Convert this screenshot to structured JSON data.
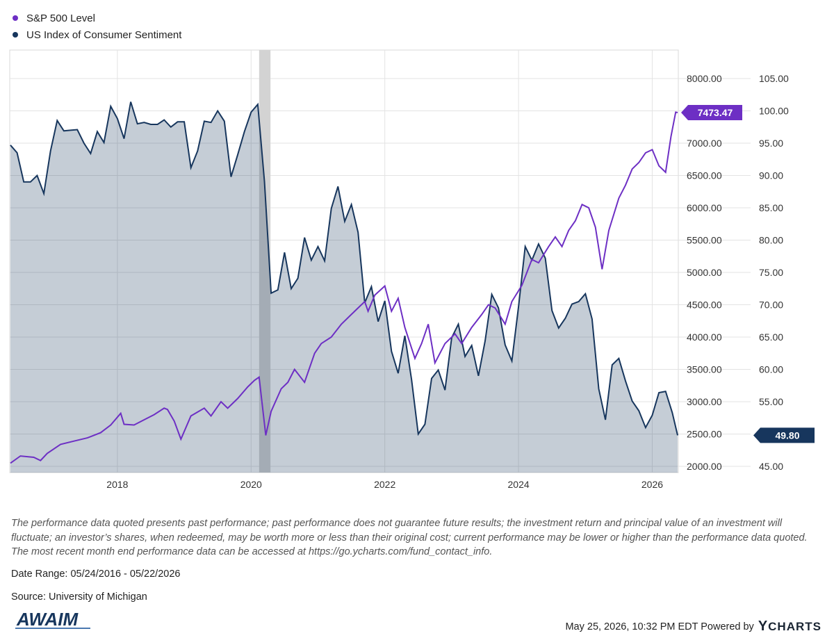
{
  "chart_data": {
    "type": "line",
    "x_range": [
      "2016-05-24",
      "2026-05-22"
    ],
    "x_ticks": [
      "2018",
      "2020",
      "2022",
      "2024",
      "2026"
    ],
    "y_left_ticks": [
      "8000.00",
      "7500.00",
      "7000.00",
      "6500.00",
      "6000.00",
      "5500.00",
      "5000.00",
      "4500.00",
      "4000.00",
      "3500.00",
      "3000.00",
      "2500.00",
      "2000.00"
    ],
    "y_right_ticks": [
      "105.00",
      "100.00",
      "95.00",
      "90.00",
      "85.00",
      "80.00",
      "75.00",
      "70.00",
      "65.00",
      "60.00",
      "55.00",
      "50.00",
      "45.00"
    ],
    "y_left_range": [
      2000,
      8000
    ],
    "y_right_range": [
      45,
      105
    ],
    "grid": "horizontal",
    "shaded_periods": [
      {
        "start": 2020.12,
        "end": 2020.29
      }
    ],
    "series": [
      {
        "name": "S&P 500 Level",
        "axis": "left",
        "color": "#6d2fc4",
        "last_value": "7473.47",
        "points": [
          [
            2016.4,
            2050
          ],
          [
            2016.55,
            2160
          ],
          [
            2016.75,
            2140
          ],
          [
            2016.85,
            2090
          ],
          [
            2016.95,
            2200
          ],
          [
            2017.15,
            2340
          ],
          [
            2017.35,
            2390
          ],
          [
            2017.55,
            2440
          ],
          [
            2017.75,
            2520
          ],
          [
            2017.9,
            2640
          ],
          [
            2018.05,
            2820
          ],
          [
            2018.1,
            2650
          ],
          [
            2018.25,
            2640
          ],
          [
            2018.4,
            2720
          ],
          [
            2018.55,
            2800
          ],
          [
            2018.7,
            2900
          ],
          [
            2018.75,
            2880
          ],
          [
            2018.85,
            2700
          ],
          [
            2018.95,
            2420
          ],
          [
            2019.1,
            2780
          ],
          [
            2019.3,
            2900
          ],
          [
            2019.4,
            2780
          ],
          [
            2019.55,
            3000
          ],
          [
            2019.65,
            2900
          ],
          [
            2019.8,
            3050
          ],
          [
            2019.95,
            3230
          ],
          [
            2020.05,
            3330
          ],
          [
            2020.12,
            3380
          ],
          [
            2020.22,
            2480
          ],
          [
            2020.3,
            2850
          ],
          [
            2020.45,
            3200
          ],
          [
            2020.55,
            3300
          ],
          [
            2020.65,
            3500
          ],
          [
            2020.8,
            3300
          ],
          [
            2020.95,
            3750
          ],
          [
            2021.05,
            3900
          ],
          [
            2021.2,
            4000
          ],
          [
            2021.35,
            4200
          ],
          [
            2021.5,
            4350
          ],
          [
            2021.6,
            4450
          ],
          [
            2021.7,
            4550
          ],
          [
            2021.75,
            4400
          ],
          [
            2021.85,
            4650
          ],
          [
            2022.0,
            4790
          ],
          [
            2022.1,
            4400
          ],
          [
            2022.2,
            4600
          ],
          [
            2022.3,
            4150
          ],
          [
            2022.45,
            3670
          ],
          [
            2022.55,
            3900
          ],
          [
            2022.65,
            4200
          ],
          [
            2022.75,
            3600
          ],
          [
            2022.9,
            3900
          ],
          [
            2023.05,
            4050
          ],
          [
            2023.15,
            3900
          ],
          [
            2023.3,
            4150
          ],
          [
            2023.45,
            4350
          ],
          [
            2023.55,
            4500
          ],
          [
            2023.65,
            4450
          ],
          [
            2023.8,
            4200
          ],
          [
            2023.9,
            4550
          ],
          [
            2024.05,
            4800
          ],
          [
            2024.2,
            5200
          ],
          [
            2024.3,
            5150
          ],
          [
            2024.45,
            5400
          ],
          [
            2024.55,
            5550
          ],
          [
            2024.65,
            5400
          ],
          [
            2024.75,
            5650
          ],
          [
            2024.85,
            5800
          ],
          [
            2024.95,
            6050
          ],
          [
            2025.05,
            6000
          ],
          [
            2025.15,
            5700
          ],
          [
            2025.25,
            5050
          ],
          [
            2025.35,
            5650
          ],
          [
            2025.5,
            6150
          ],
          [
            2025.6,
            6350
          ],
          [
            2025.7,
            6600
          ],
          [
            2025.8,
            6700
          ],
          [
            2025.9,
            6850
          ],
          [
            2026.0,
            6900
          ],
          [
            2026.1,
            6650
          ],
          [
            2026.2,
            6550
          ],
          [
            2026.28,
            7100
          ],
          [
            2026.35,
            7480
          ],
          [
            2026.38,
            7473
          ]
        ]
      },
      {
        "name": "US Index of Consumer Sentiment",
        "axis": "right",
        "color": "#17365d",
        "last_value": "49.80",
        "points": [
          [
            2016.4,
            94.7
          ],
          [
            2016.5,
            93.5
          ],
          [
            2016.6,
            89.0
          ],
          [
            2016.7,
            89.0
          ],
          [
            2016.8,
            90.0
          ],
          [
            2016.9,
            87.2
          ],
          [
            2017.0,
            93.8
          ],
          [
            2017.1,
            98.5
          ],
          [
            2017.2,
            96.9
          ],
          [
            2017.3,
            97.0
          ],
          [
            2017.4,
            97.1
          ],
          [
            2017.5,
            95.0
          ],
          [
            2017.6,
            93.4
          ],
          [
            2017.7,
            96.8
          ],
          [
            2017.8,
            95.1
          ],
          [
            2017.9,
            100.7
          ],
          [
            2018.0,
            98.8
          ],
          [
            2018.1,
            95.7
          ],
          [
            2018.2,
            101.4
          ],
          [
            2018.3,
            98.0
          ],
          [
            2018.4,
            98.2
          ],
          [
            2018.5,
            97.9
          ],
          [
            2018.6,
            97.9
          ],
          [
            2018.7,
            98.6
          ],
          [
            2018.8,
            97.5
          ],
          [
            2018.9,
            98.3
          ],
          [
            2019.0,
            98.3
          ],
          [
            2019.1,
            91.2
          ],
          [
            2019.2,
            93.8
          ],
          [
            2019.3,
            98.4
          ],
          [
            2019.4,
            98.2
          ],
          [
            2019.5,
            100.0
          ],
          [
            2019.6,
            98.4
          ],
          [
            2019.7,
            89.8
          ],
          [
            2019.8,
            93.2
          ],
          [
            2019.9,
            96.8
          ],
          [
            2020.0,
            99.8
          ],
          [
            2020.1,
            101.0
          ],
          [
            2020.2,
            89.1
          ],
          [
            2020.3,
            71.8
          ],
          [
            2020.4,
            72.3
          ],
          [
            2020.5,
            78.1
          ],
          [
            2020.6,
            72.5
          ],
          [
            2020.7,
            74.1
          ],
          [
            2020.8,
            80.4
          ],
          [
            2020.9,
            76.9
          ],
          [
            2021.0,
            79.0
          ],
          [
            2021.1,
            76.8
          ],
          [
            2021.2,
            84.9
          ],
          [
            2021.3,
            88.3
          ],
          [
            2021.4,
            82.9
          ],
          [
            2021.5,
            85.5
          ],
          [
            2021.6,
            81.2
          ],
          [
            2021.7,
            70.3
          ],
          [
            2021.8,
            72.8
          ],
          [
            2021.9,
            67.4
          ],
          [
            2022.0,
            70.6
          ],
          [
            2022.1,
            62.8
          ],
          [
            2022.2,
            59.4
          ],
          [
            2022.3,
            65.2
          ],
          [
            2022.4,
            58.4
          ],
          [
            2022.5,
            50.0
          ],
          [
            2022.6,
            51.5
          ],
          [
            2022.7,
            58.6
          ],
          [
            2022.8,
            59.9
          ],
          [
            2022.9,
            56.8
          ],
          [
            2023.0,
            64.9
          ],
          [
            2023.1,
            67.0
          ],
          [
            2023.2,
            62.0
          ],
          [
            2023.3,
            63.7
          ],
          [
            2023.4,
            59.0
          ],
          [
            2023.5,
            64.4
          ],
          [
            2023.6,
            71.6
          ],
          [
            2023.7,
            69.5
          ],
          [
            2023.8,
            63.8
          ],
          [
            2023.9,
            61.3
          ],
          [
            2024.0,
            69.7
          ],
          [
            2024.1,
            79.0
          ],
          [
            2024.2,
            76.9
          ],
          [
            2024.3,
            79.4
          ],
          [
            2024.4,
            77.2
          ],
          [
            2024.5,
            69.1
          ],
          [
            2024.6,
            66.4
          ],
          [
            2024.7,
            67.9
          ],
          [
            2024.8,
            70.1
          ],
          [
            2024.9,
            70.5
          ],
          [
            2025.0,
            71.7
          ],
          [
            2025.1,
            67.8
          ],
          [
            2025.2,
            57.0
          ],
          [
            2025.3,
            52.2
          ],
          [
            2025.4,
            60.7
          ],
          [
            2025.5,
            61.7
          ],
          [
            2025.6,
            58.2
          ],
          [
            2025.7,
            55.1
          ],
          [
            2025.8,
            53.6
          ],
          [
            2025.9,
            51.0
          ],
          [
            2026.0,
            52.9
          ],
          [
            2026.1,
            56.4
          ],
          [
            2026.2,
            56.6
          ],
          [
            2026.3,
            53.3
          ],
          [
            2026.38,
            49.8
          ]
        ]
      }
    ]
  },
  "legend": [
    {
      "label": "S&P 500 Level",
      "color": "#6d2fc4"
    },
    {
      "label": "US Index of Consumer Sentiment",
      "color": "#17365d"
    }
  ],
  "disclaimer": "The performance data quoted presents past performance; past performance does not guarantee future results; the investment return and principal value of an investment will fluctuate; an investor’s shares, when redeemed, may be worth more or less than their original cost; current performance may be lower or higher than the performance data quoted. The most recent month end performance data can be accessed at https://go.ycharts.com/fund_contact_info.",
  "date_range": "Date Range: 05/24/2016 - 05/22/2026",
  "source": "Source: University of Michigan",
  "logo_text": "AWAIM",
  "footer": {
    "timestamp": "May 25, 2026, 10:32 PM EDT Powered by",
    "brand": "YCHARTS",
    "brand_y": "Y",
    "brand_rest": "CHARTS"
  }
}
